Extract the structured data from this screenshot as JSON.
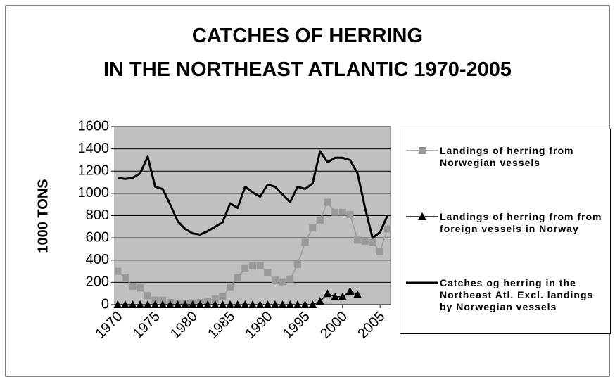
{
  "chart_data": {
    "type": "line",
    "title": "CATCHES OF HERRING IN THE NORTHEAST ATLANTIC 1970-2005",
    "y_label": "1000 TONS",
    "x": [
      1970,
      1971,
      1972,
      1973,
      1974,
      1975,
      1976,
      1977,
      1978,
      1979,
      1980,
      1981,
      1982,
      1983,
      1984,
      1985,
      1986,
      1987,
      1988,
      1989,
      1990,
      1991,
      1992,
      1993,
      1994,
      1995,
      1996,
      1997,
      1998,
      1999,
      2000,
      2001,
      2002,
      2003,
      2004,
      2005,
      2006
    ],
    "series": [
      {
        "name": "Landings of herring from Norwegian vessels",
        "color": "#999999",
        "marker": "square",
        "values": [
          300,
          240,
          165,
          150,
          80,
          40,
          40,
          20,
          10,
          10,
          15,
          20,
          30,
          50,
          70,
          160,
          240,
          330,
          350,
          350,
          290,
          220,
          205,
          230,
          360,
          560,
          690,
          760,
          920,
          830,
          830,
          810,
          580,
          570,
          560,
          480,
          680
        ]
      },
      {
        "name": "Landings of herring from from foreign vessels in Norway",
        "color": "#000000",
        "marker": "triangle",
        "values": [
          0,
          0,
          0,
          0,
          0,
          0,
          0,
          0,
          0,
          0,
          0,
          0,
          0,
          0,
          0,
          0,
          0,
          0,
          0,
          0,
          0,
          0,
          0,
          0,
          0,
          0,
          0,
          30,
          100,
          70,
          70,
          120,
          90,
          null,
          null,
          null,
          null
        ]
      },
      {
        "name": "Catches og herring in the Northeast Atl. Excl. landings by Norwegian vessels",
        "color": "#000000",
        "marker": "none",
        "values": [
          1140,
          1130,
          1140,
          1180,
          1330,
          1060,
          1040,
          900,
          750,
          680,
          640,
          630,
          660,
          700,
          740,
          910,
          870,
          1060,
          1010,
          970,
          1080,
          1060,
          990,
          920,
          1060,
          1040,
          1090,
          1380,
          1280,
          1320,
          1320,
          1300,
          1180,
          870,
          600,
          650,
          800
        ]
      }
    ],
    "xlim": [
      1969.6,
      2006.4
    ],
    "xticks": [
      1970,
      1975,
      1980,
      1985,
      1990,
      1995,
      2000,
      2005
    ],
    "ylim": [
      0,
      1600
    ],
    "yticks": [
      0,
      200,
      400,
      600,
      800,
      1000,
      1200,
      1400,
      1600
    ],
    "grid": true,
    "legend": "right"
  }
}
